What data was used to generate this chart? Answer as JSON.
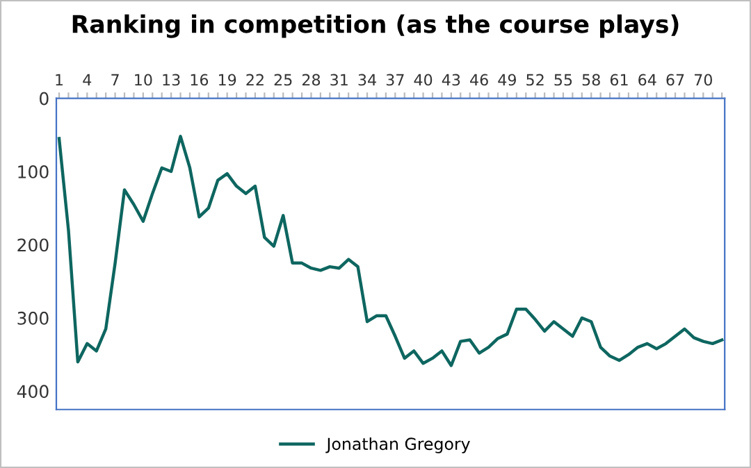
{
  "chart_data": {
    "type": "line",
    "title": "Ranking in competition (as the course plays)",
    "categories": [
      "1",
      null,
      null,
      "4",
      null,
      null,
      "7",
      null,
      null,
      "10",
      null,
      null,
      "13",
      null,
      null,
      "16",
      null,
      null,
      "19",
      null,
      null,
      "22",
      null,
      null,
      "25",
      null,
      null,
      "28",
      null,
      null,
      "31",
      null,
      null,
      "34",
      null,
      null,
      "37",
      null,
      null,
      "40",
      null,
      null,
      "43",
      null,
      null,
      "46",
      null,
      null,
      "49",
      null,
      null,
      "52",
      null,
      null,
      "55",
      null,
      null,
      "58",
      null,
      null,
      "61",
      null,
      null,
      "64",
      null,
      null,
      "67",
      null,
      null,
      "70",
      null,
      null
    ],
    "series": [
      {
        "name": "Jonathan Gregory",
        "color": "#0e6660",
        "values": [
          55,
          180,
          360,
          335,
          345,
          315,
          225,
          125,
          145,
          168,
          130,
          95,
          100,
          52,
          95,
          162,
          150,
          112,
          103,
          120,
          130,
          120,
          190,
          202,
          160,
          225,
          225,
          232,
          235,
          230,
          232,
          220,
          230,
          305,
          297,
          297,
          325,
          355,
          345,
          362,
          355,
          345,
          365,
          332,
          330,
          348,
          340,
          328,
          322,
          288,
          288,
          302,
          318,
          305,
          315,
          325,
          300,
          305,
          340,
          352,
          358,
          350,
          340,
          335,
          342,
          335,
          325,
          315,
          327,
          332,
          335,
          330
        ]
      }
    ],
    "ylim": [
      425,
      0
    ],
    "yticks": [
      0,
      100,
      200,
      300,
      400
    ],
    "grid": false,
    "legend": "bottom",
    "marker": "none",
    "line_style": "solid"
  }
}
